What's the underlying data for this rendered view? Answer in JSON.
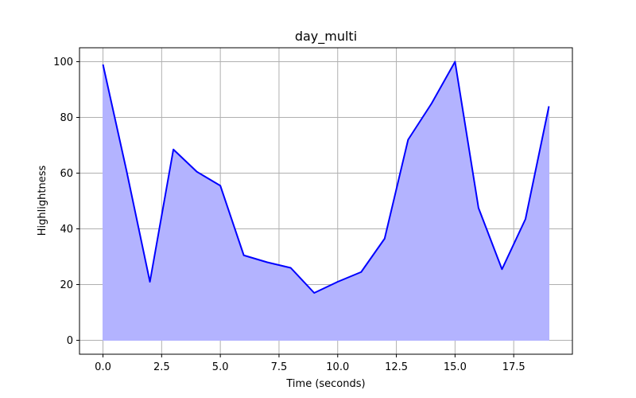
{
  "chart_data": {
    "type": "area",
    "title": "day_multi",
    "xlabel": "Time (seconds)",
    "ylabel": "Highlightness",
    "x": [
      0,
      1,
      2,
      3,
      4,
      5,
      6,
      7,
      8,
      9,
      10,
      11,
      12,
      13,
      14,
      15,
      16,
      17,
      18,
      19
    ],
    "series": [
      {
        "values": [
          99,
          61,
          21,
          68.5,
          60.5,
          55.5,
          30.5,
          28,
          26,
          17,
          21,
          24.5,
          36.5,
          72,
          85,
          100,
          47.5,
          25.5,
          43.5,
          84
        ],
        "line_color": "#0000ff",
        "fill_color": "#b3b3ff"
      }
    ],
    "xlim": [
      -1.0,
      20.0
    ],
    "ylim": [
      -5,
      105
    ],
    "xticks": [
      0.0,
      2.5,
      5.0,
      7.5,
      10.0,
      12.5,
      15.0,
      17.5
    ],
    "xtick_labels": [
      "0.0",
      "2.5",
      "5.0",
      "7.5",
      "10.0",
      "12.5",
      "15.0",
      "17.5"
    ],
    "yticks": [
      0,
      20,
      40,
      60,
      80,
      100
    ],
    "ytick_labels": [
      "0",
      "20",
      "40",
      "60",
      "80",
      "100"
    ],
    "grid": true,
    "grid_color": "#b0b0b0"
  }
}
